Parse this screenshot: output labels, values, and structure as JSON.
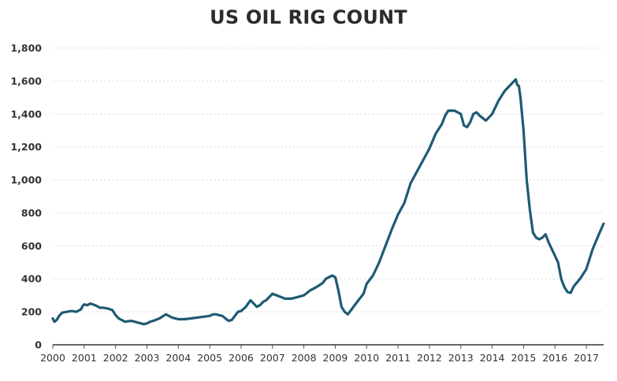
{
  "chart_data": {
    "type": "line",
    "title": "US OIL RIG COUNT",
    "xlabel": "",
    "ylabel": "",
    "xlim": [
      2000,
      2017.55
    ],
    "ylim": [
      0,
      1800
    ],
    "yticks": [
      "0",
      "200",
      "400",
      "600",
      "800",
      "1,000",
      "1,200",
      "1,400",
      "1,600",
      "1,800"
    ],
    "ytick_values": [
      0,
      200,
      400,
      600,
      800,
      1000,
      1200,
      1400,
      1600,
      1800
    ],
    "xticks": [
      "2000",
      "2001",
      "2002",
      "2003",
      "2004",
      "2005",
      "2006",
      "2007",
      "2008",
      "2009",
      "2010",
      "2011",
      "2012",
      "2013",
      "2014",
      "2015",
      "2016",
      "2017"
    ],
    "xtick_values": [
      2000,
      2001,
      2002,
      2003,
      2004,
      2005,
      2006,
      2007,
      2008,
      2009,
      2010,
      2011,
      2012,
      2013,
      2014,
      2015,
      2016,
      2017
    ],
    "grid": "horizontal",
    "line_color": "#1f5a74",
    "series": [
      {
        "x": [
          2000.0,
          2000.05,
          2000.12,
          2000.2,
          2000.3,
          2000.45,
          2000.6,
          2000.75,
          2000.9,
          2000.95,
          2001.0,
          2001.1,
          2001.2,
          2001.35,
          2001.5,
          2001.6,
          2001.75,
          2001.9,
          2002.0,
          2002.1,
          2002.3,
          2002.5,
          2002.7,
          2002.9,
          2003.0,
          2003.1,
          2003.2,
          2003.4,
          2003.6,
          2003.8,
          2004.0,
          2004.2,
          2004.4,
          2004.6,
          2004.8,
          2005.0,
          2005.1,
          2005.2,
          2005.4,
          2005.6,
          2005.7,
          2005.9,
          2006.0,
          2006.15,
          2006.3,
          2006.5,
          2006.6,
          2006.7,
          2006.8,
          2007.0,
          2007.2,
          2007.4,
          2007.6,
          2007.8,
          2008.0,
          2008.2,
          2008.4,
          2008.6,
          2008.7,
          2008.8,
          2008.9,
          2009.0,
          2009.1,
          2009.2,
          2009.3,
          2009.4,
          2009.5,
          2009.7,
          2009.9,
          2010.0,
          2010.2,
          2010.4,
          2010.6,
          2010.8,
          2011.0,
          2011.2,
          2011.4,
          2011.6,
          2011.8,
          2012.0,
          2012.2,
          2012.4,
          2012.5,
          2012.6,
          2012.7,
          2012.8,
          2012.9,
          2013.0,
          2013.1,
          2013.2,
          2013.3,
          2013.4,
          2013.5,
          2013.6,
          2013.8,
          2014.0,
          2014.2,
          2014.4,
          2014.6,
          2014.7,
          2014.75,
          2014.8,
          2014.85,
          2014.9,
          2015.0,
          2015.1,
          2015.2,
          2015.3,
          2015.4,
          2015.5,
          2015.6,
          2015.7,
          2015.8,
          2016.0,
          2016.1,
          2016.2,
          2016.3,
          2016.4,
          2016.5,
          2016.6,
          2016.8,
          2017.0,
          2017.2,
          2017.4,
          2017.55
        ],
        "values": [
          160,
          140,
          150,
          175,
          195,
          200,
          205,
          200,
          215,
          235,
          245,
          240,
          250,
          240,
          225,
          225,
          220,
          210,
          180,
          160,
          140,
          145,
          135,
          125,
          130,
          140,
          145,
          160,
          185,
          165,
          155,
          155,
          160,
          165,
          170,
          175,
          185,
          185,
          175,
          145,
          150,
          200,
          205,
          230,
          270,
          230,
          240,
          260,
          270,
          310,
          295,
          280,
          280,
          290,
          300,
          330,
          350,
          375,
          400,
          410,
          420,
          410,
          330,
          230,
          200,
          185,
          210,
          260,
          310,
          370,
          420,
          500,
          600,
          700,
          790,
          860,
          980,
          1050,
          1120,
          1190,
          1280,
          1340,
          1390,
          1420,
          1420,
          1420,
          1410,
          1400,
          1330,
          1320,
          1350,
          1400,
          1410,
          1390,
          1360,
          1400,
          1480,
          1540,
          1580,
          1600,
          1610,
          1575,
          1570,
          1500,
          1300,
          1000,
          820,
          680,
          650,
          640,
          650,
          670,
          620,
          540,
          500,
          400,
          350,
          320,
          315,
          355,
          400,
          460,
          580,
          670,
          735
        ]
      }
    ]
  }
}
